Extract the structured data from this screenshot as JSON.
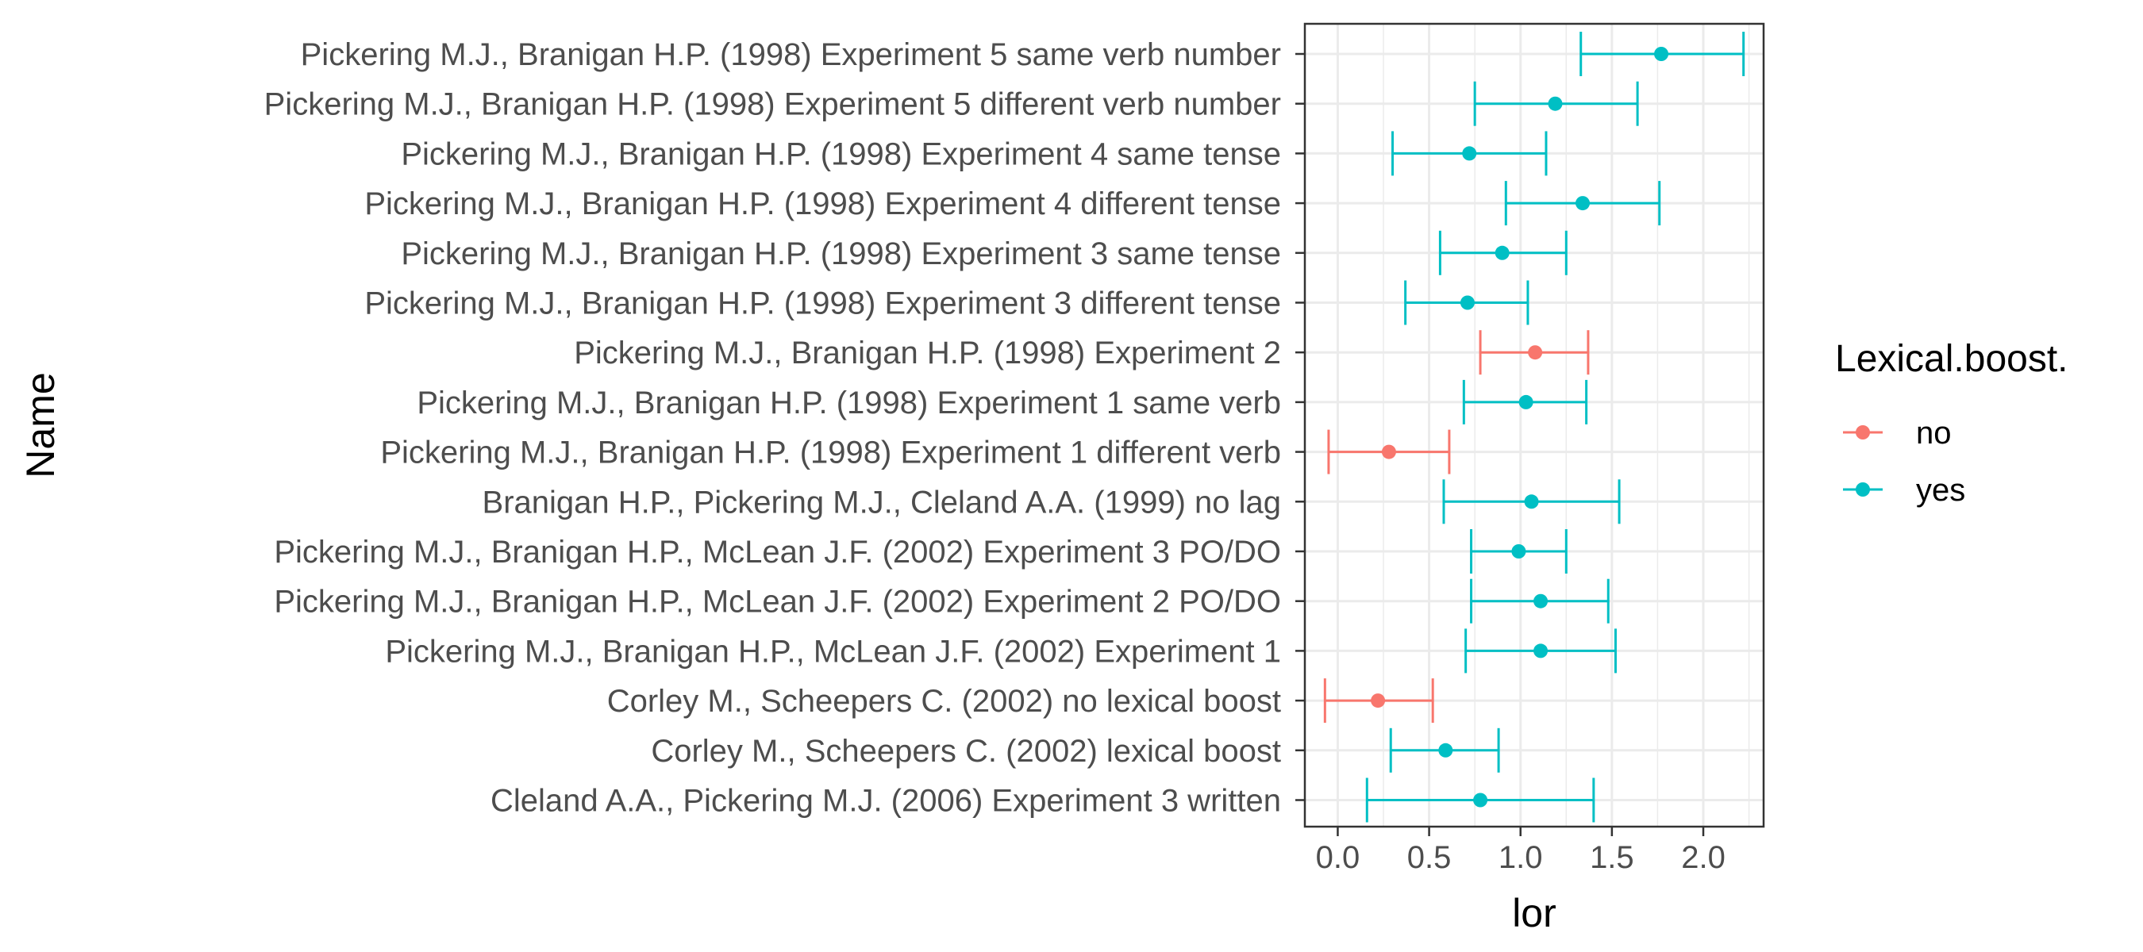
{
  "chart_data": {
    "type": "forest",
    "xlabel": "lor",
    "ylabel": "Name",
    "xlim": [
      -0.18,
      2.33
    ],
    "xticks": [
      0.0,
      0.5,
      1.0,
      1.5,
      2.0
    ],
    "xtick_labels": [
      "0.0",
      "0.5",
      "1.0",
      "1.5",
      "2.0"
    ],
    "grid": true,
    "legend": {
      "title": "Lexical.boost.",
      "placement": "right",
      "entries": [
        {
          "label": "no",
          "color": "#F8766D"
        },
        {
          "label": "yes",
          "color": "#00BFC4"
        }
      ]
    },
    "rows": [
      {
        "name": "Pickering M.J., Branigan H.P. (1998) Experiment 5 same verb number",
        "lor": 1.77,
        "lo": 1.33,
        "hi": 2.22,
        "group": "yes"
      },
      {
        "name": "Pickering M.J., Branigan H.P. (1998) Experiment 5 different verb number",
        "lor": 1.19,
        "lo": 0.75,
        "hi": 1.64,
        "group": "yes"
      },
      {
        "name": "Pickering M.J., Branigan H.P. (1998) Experiment 4 same tense",
        "lor": 0.72,
        "lo": 0.3,
        "hi": 1.14,
        "group": "yes"
      },
      {
        "name": "Pickering M.J., Branigan H.P. (1998) Experiment 4 different tense",
        "lor": 1.34,
        "lo": 0.92,
        "hi": 1.76,
        "group": "yes"
      },
      {
        "name": "Pickering M.J., Branigan H.P. (1998) Experiment 3 same tense",
        "lor": 0.9,
        "lo": 0.56,
        "hi": 1.25,
        "group": "yes"
      },
      {
        "name": "Pickering M.J., Branigan H.P. (1998) Experiment 3 different tense",
        "lor": 0.71,
        "lo": 0.37,
        "hi": 1.04,
        "group": "yes"
      },
      {
        "name": "Pickering M.J., Branigan H.P. (1998) Experiment 2 ",
        "lor": 1.08,
        "lo": 0.78,
        "hi": 1.37,
        "group": "no"
      },
      {
        "name": "Pickering M.J., Branigan H.P. (1998) Experiment 1 same verb",
        "lor": 1.03,
        "lo": 0.69,
        "hi": 1.36,
        "group": "yes"
      },
      {
        "name": "Pickering M.J., Branigan H.P. (1998) Experiment 1 different verb",
        "lor": 0.28,
        "lo": -0.05,
        "hi": 0.61,
        "group": "no"
      },
      {
        "name": "Branigan H.P., Pickering M.J., Cleland A.A. (1999)  no lag",
        "lor": 1.06,
        "lo": 0.58,
        "hi": 1.54,
        "group": "yes"
      },
      {
        "name": "Pickering M.J., Branigan H.P., McLean J.F. (2002) Experiment 3 PO/DO",
        "lor": 0.99,
        "lo": 0.73,
        "hi": 1.25,
        "group": "yes"
      },
      {
        "name": "Pickering M.J., Branigan H.P., McLean J.F. (2002) Experiment 2 PO/DO",
        "lor": 1.11,
        "lo": 0.73,
        "hi": 1.48,
        "group": "yes"
      },
      {
        "name": "Pickering M.J., Branigan H.P., McLean J.F. (2002) Experiment 1 ",
        "lor": 1.11,
        "lo": 0.7,
        "hi": 1.52,
        "group": "yes"
      },
      {
        "name": "Corley M., Scheepers C. (2002)  no lexical boost",
        "lor": 0.22,
        "lo": -0.07,
        "hi": 0.52,
        "group": "no"
      },
      {
        "name": "Corley M., Scheepers C. (2002)  lexical boost",
        "lor": 0.59,
        "lo": 0.29,
        "hi": 0.88,
        "group": "yes"
      },
      {
        "name": "Cleland A.A., Pickering M.J. (2006) Experiment 3 written",
        "lor": 0.78,
        "lo": 0.16,
        "hi": 1.4,
        "group": "yes"
      }
    ]
  }
}
